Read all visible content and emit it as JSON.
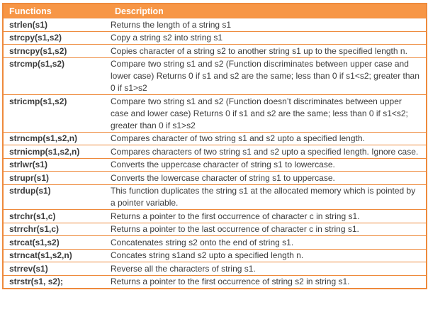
{
  "colors": {
    "header_bg": "#F79646",
    "border": "#EE8A3C",
    "header_text": "#FFFFFF",
    "body_text": "#3C3C3C"
  },
  "table": {
    "headers": [
      "Functions",
      "Description"
    ],
    "rows": [
      {
        "fn": "strlen(s1)",
        "desc": "Returns the length of a string s1"
      },
      {
        "fn": "strcpy(s1,s2)",
        "desc": "Copy a string s2 into string s1"
      },
      {
        "fn": "strncpy(s1,s2)",
        "desc": "Copies character of a string s2 to another string s1 up to the specified length n."
      },
      {
        "fn": "strcmp(s1,s2)",
        "desc": "Compare two string s1 and s2 (Function discriminates between upper case and lower case) Returns 0 if s1 and s2 are the same; less than 0 if s1<s2; greater than 0 if s1>s2"
      },
      {
        "fn": "stricmp(s1,s2)",
        "desc": "Compare two string s1 and s2 (Function doesn’t discriminates between upper case and lower case) Returns 0 if s1 and s2 are the same; less than 0 if s1<s2; greater than 0 if s1>s2"
      },
      {
        "fn": "strncmp(s1,s2,n)",
        "desc": "Compares character of two string s1 and s2 upto a specified length."
      },
      {
        "fn": "strnicmp(s1,s2,n)",
        "desc": "Compares characters of two string s1 and s2 upto a specified length. Ignore case."
      },
      {
        "fn": "strlwr(s1)",
        "desc": "Converts the uppercase character of string s1 to lowercase."
      },
      {
        "fn": "strupr(s1)",
        "desc": "Converts the lowercase character of string s1 to uppercase."
      },
      {
        "fn": "strdup(s1)",
        "desc": "This function duplicates the string s1 at the allocated memory which is pointed by a pointer variable."
      },
      {
        "fn": "strchr(s1,c)",
        "desc": "Returns a pointer to the first occurrence of character c in string s1."
      },
      {
        "fn": "strrchr(s1,c)",
        "desc": "Returns a pointer to the last occurrence of character c in string s1."
      },
      {
        "fn": "strcat(s1,s2)",
        "desc": "Concatenates string s2 onto the end of string s1."
      },
      {
        "fn": "strncat(s1,s2,n)",
        "desc": "Concates string s1and s2 upto a specified length n."
      },
      {
        "fn": "strrev(s1)",
        "desc": "Reverse all the characters of string s1."
      },
      {
        "fn": "strstr(s1, s2);",
        "desc": "Returns a pointer to the first occurrence of string s2 in string s1."
      }
    ]
  }
}
